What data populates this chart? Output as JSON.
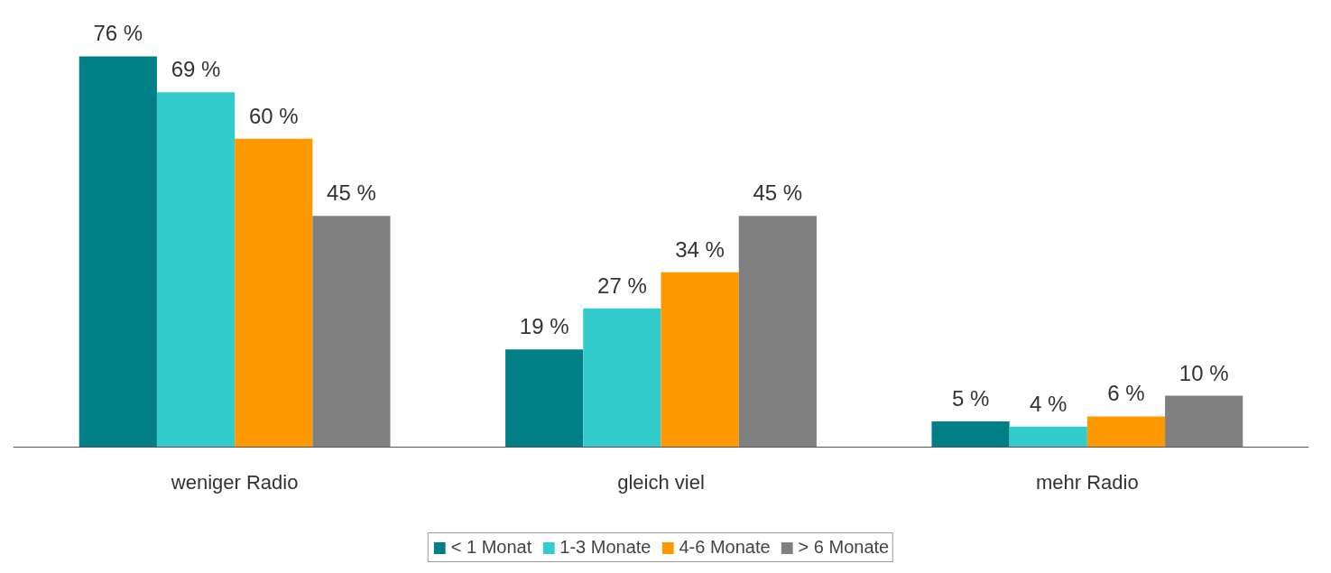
{
  "chart_data": {
    "type": "bar",
    "categories": [
      "weniger Radio",
      "gleich viel",
      "mehr Radio"
    ],
    "series": [
      {
        "name": "< 1 Monat",
        "color": "#007f86",
        "values": [
          76,
          19,
          5
        ],
        "value_labels": [
          "76 %",
          "19 %",
          "5 %"
        ]
      },
      {
        "name": "1-3 Monate",
        "color": "#33cccc",
        "values": [
          69,
          27,
          4
        ],
        "value_labels": [
          "69 %",
          "27 %",
          "4 %"
        ]
      },
      {
        "name": "4-6 Monate",
        "color": "#ff9900",
        "values": [
          60,
          34,
          6
        ],
        "value_labels": [
          "60 %",
          "34 %",
          "6 %"
        ]
      },
      {
        "name": "> 6 Monate",
        "color": "#808080",
        "values": [
          45,
          45,
          10
        ],
        "value_labels": [
          "45 %",
          "45 %",
          "10 %"
        ]
      }
    ],
    "legend": "bottom",
    "grid": false
  }
}
